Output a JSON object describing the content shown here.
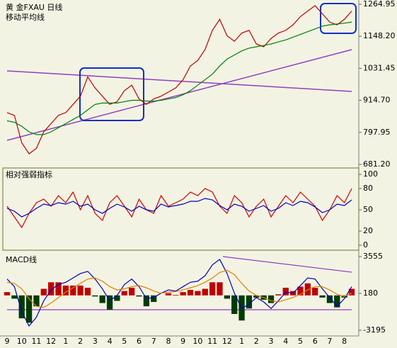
{
  "chart_data": [
    {
      "type": "line",
      "title": "黄 金FXAU 日线",
      "subtitle": "移动平均线",
      "ylim": [
        681.2,
        1264.95
      ],
      "yticks": [
        {
          "value": 681.2,
          "label": "681.20"
        },
        797.95,
        {
          "value": 914.7,
          "label": "914.70"
        },
        1031.45,
        {
          "value": 1148.2,
          "label": "1148.20"
        },
        1264.95
      ],
      "series": [
        {
          "color": "#c00000",
          "values": [
            870,
            860,
            760,
            720,
            740,
            800,
            830,
            860,
            870,
            900,
            930,
            1000,
            960,
            930,
            900,
            910,
            950,
            970,
            920,
            900,
            920,
            930,
            945,
            960,
            990,
            1040,
            1060,
            1100,
            1170,
            1210,
            1150,
            1130,
            1160,
            1170,
            1120,
            1110,
            1140,
            1160,
            1170,
            1190,
            1220,
            1240,
            1260,
            1230,
            1200,
            1190,
            1210,
            1240
          ]
        },
        {
          "color": "#008000",
          "values": [
            840,
            835,
            820,
            800,
            790,
            790,
            800,
            815,
            830,
            845,
            860,
            880,
            900,
            905,
            905,
            905,
            910,
            915,
            915,
            912,
            912,
            915,
            920,
            925,
            935,
            950,
            970,
            990,
            1010,
            1040,
            1065,
            1080,
            1095,
            1105,
            1110,
            1115,
            1120,
            1128,
            1135,
            1145,
            1155,
            1165,
            1175,
            1185,
            1190,
            1193,
            1196,
            1200
          ]
        }
      ]
    },
    {
      "type": "line",
      "title": "相对强弱指标",
      "ylim": [
        0,
        100
      ],
      "yticks": [
        0,
        20,
        50,
        80,
        100
      ],
      "series": [
        {
          "color": "#d00000",
          "values": [
            55,
            40,
            25,
            45,
            60,
            65,
            55,
            70,
            60,
            75,
            50,
            70,
            45,
            35,
            60,
            70,
            55,
            40,
            65,
            50,
            45,
            70,
            55,
            60,
            65,
            75,
            70,
            80,
            75,
            55,
            45,
            70,
            60,
            40,
            55,
            65,
            40,
            55,
            70,
            60,
            75,
            65,
            55,
            35,
            50,
            70,
            60,
            80
          ]
        },
        {
          "color": "#0000c0",
          "values": [
            52,
            48,
            40,
            45,
            52,
            58,
            56,
            60,
            58,
            62,
            55,
            58,
            50,
            45,
            52,
            58,
            54,
            48,
            55,
            50,
            48,
            58,
            54,
            56,
            58,
            62,
            62,
            66,
            64,
            56,
            50,
            58,
            55,
            48,
            52,
            56,
            48,
            52,
            60,
            56,
            62,
            60,
            54,
            46,
            50,
            58,
            56,
            64
          ]
        }
      ]
    },
    {
      "type": "macd",
      "title": "MACD线",
      "categories": [
        "9",
        null,
        "10",
        null,
        "11",
        null,
        "12",
        null,
        "1",
        null,
        "2",
        null,
        "3",
        null,
        "4",
        null,
        "5",
        null,
        "6",
        null,
        "7",
        null,
        "8",
        null,
        "9",
        null,
        "10",
        null,
        "11",
        null,
        "12",
        null,
        "1",
        null,
        "2",
        null,
        "3",
        null,
        "4",
        null,
        "5",
        null,
        "6",
        null,
        "7",
        null,
        "8",
        null
      ],
      "ylim": [
        -3195,
        3555
      ],
      "yticks": [
        -3195,
        180,
        3555
      ],
      "series": [
        {
          "kind": "bar",
          "color": "#c00000",
          "negative_color": "#003c00",
          "values": [
            300,
            -300,
            -2100,
            -2500,
            -1000,
            600,
            1200,
            1200,
            900,
            900,
            900,
            700,
            -100,
            -700,
            -1300,
            -500,
            400,
            700,
            -100,
            -1000,
            -600,
            0,
            200,
            50,
            300,
            500,
            400,
            600,
            1200,
            1200,
            -300,
            -1700,
            -2300,
            -1200,
            -200,
            -400,
            -700,
            100,
            700,
            400,
            800,
            1100,
            700,
            -200,
            -700,
            -1100,
            -200,
            600
          ]
        },
        {
          "kind": "line",
          "color": "#0000c0",
          "values": [
            1500,
            800,
            -1500,
            -2800,
            -2000,
            -500,
            500,
            1000,
            1200,
            1600,
            2000,
            2200,
            1500,
            600,
            -500,
            0,
            1000,
            1500,
            800,
            -300,
            -200,
            200,
            500,
            400,
            800,
            1200,
            1300,
            1800,
            2800,
            3300,
            2000,
            200,
            -1200,
            -800,
            -200,
            -600,
            -1200,
            -500,
            300,
            200,
            900,
            1600,
            1500,
            600,
            -200,
            -1000,
            -300,
            800
          ]
        },
        {
          "kind": "line",
          "color": "#e08000",
          "values": [
            1200,
            1100,
            600,
            -300,
            -1000,
            -1100,
            -700,
            -200,
            300,
            700,
            1100,
            1500,
            1600,
            1300,
            800,
            500,
            600,
            800,
            900,
            700,
            400,
            200,
            300,
            350,
            500,
            700,
            900,
            1200,
            1600,
            2100,
            2300,
            1900,
            1100,
            400,
            0,
            -200,
            -500,
            -600,
            -400,
            -200,
            100,
            500,
            800,
            800,
            500,
            100,
            -100,
            200
          ]
        }
      ]
    }
  ]
}
